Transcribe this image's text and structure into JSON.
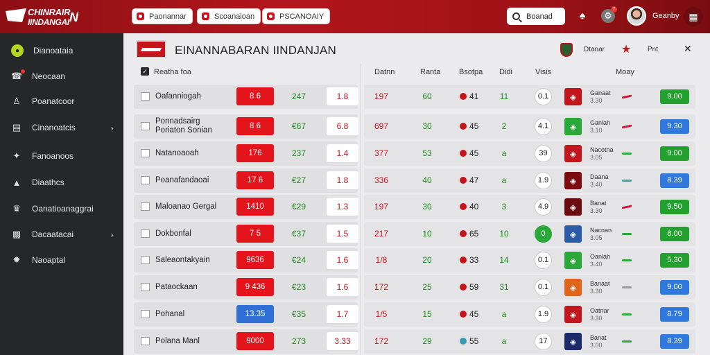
{
  "app": {
    "logo_line1": "CHINRAIR",
    "logo_line2": "IINDANGAI",
    "logo_suffix": "N"
  },
  "topnav": {
    "pills": [
      "Paonannar",
      "Scoanaioan",
      "PSCANOAIY"
    ],
    "search_label": "Boanad",
    "notif_count": "7",
    "user_name": "Geanby"
  },
  "sidebar": {
    "items": [
      {
        "label": "Dianoataia",
        "icon": "ball-icon",
        "active": true
      },
      {
        "label": "Neocaan",
        "icon": "whistle-icon"
      },
      {
        "label": "Poanatcoor",
        "icon": "player-icon"
      },
      {
        "label": "Cinanoatcis",
        "icon": "table-icon",
        "chevron": true
      },
      {
        "label": "Fanoanoos",
        "icon": "kick-icon"
      },
      {
        "label": "Diaathcs",
        "icon": "chart-icon"
      },
      {
        "label": "Oanatioanaggrai",
        "icon": "trophy-icon"
      },
      {
        "label": "Dacaatacai",
        "icon": "grid-icon",
        "chevron": true
      },
      {
        "label": "Naoaptal",
        "icon": "stadium-icon"
      }
    ]
  },
  "panel": {
    "title": "EINANNABARAN IINDANJAN",
    "header_right_1": "Dtanar",
    "header_right_2": "Pnt",
    "col_left": "Reatha foa",
    "columns": [
      "Datnn",
      "Ranta",
      "Bsotpa",
      "Didi",
      "Visis",
      "Moay"
    ]
  },
  "rows": [
    {
      "name": "Oafanniogah",
      "name2": "",
      "score": "8 6",
      "score_color": "red",
      "g": "247",
      "odd": "1.8",
      "c1": "197",
      "c2": "60",
      "c3": "41",
      "c4": "11",
      "circ": "0.1",
      "circ_green": false,
      "logo_color": "#c3161c",
      "t1": "Ganaat",
      "t2": "3.30",
      "arrow": "red",
      "vbtn": "9.00",
      "vbtn_color": "green"
    },
    {
      "name": "Ponnadsairg",
      "name2": "Poriaton Sonian",
      "score": "8 6",
      "score_color": "red",
      "g": "€67",
      "odd": "6.8",
      "c1": "697",
      "c2": "30",
      "c3": "45",
      "c4": "2",
      "circ": "4.1",
      "circ_green": false,
      "logo_color": "#2aa83a",
      "t1": "Ganlah",
      "t2": "3.10",
      "arrow": "red",
      "vbtn": "9.30",
      "vbtn_color": "blue"
    },
    {
      "name": "Natanoaoah",
      "name2": "",
      "score": "176",
      "score_color": "red",
      "g": "237",
      "odd": "1.4",
      "c1": "377",
      "c2": "53",
      "c3": "45",
      "c4": "a",
      "circ": "39",
      "circ_green": false,
      "logo_color": "#c3161c",
      "t1": "Nacotna",
      "t2": "3.05",
      "arrow": "green",
      "vbtn": "9.00",
      "vbtn_color": "green"
    },
    {
      "name": "Poanafandaoai",
      "name2": "",
      "score": "17 6",
      "score_color": "red",
      "g": "€27",
      "odd": "1.8",
      "c1": "336",
      "c2": "40",
      "c3": "47",
      "c4": "a",
      "circ": "1.9",
      "circ_green": false,
      "logo_color": "#7a0c10",
      "t1": "Daana",
      "t2": "3.40",
      "arrow": "teal",
      "vbtn": "8.39",
      "vbtn_color": "blue"
    },
    {
      "name": "Maloanao Gergal",
      "name2": "",
      "score": "1410",
      "score_color": "red",
      "g": "€29",
      "odd": "1.3",
      "c1": "197",
      "c2": "30",
      "c3": "40",
      "c4": "3",
      "circ": "4.9",
      "circ_green": false,
      "logo_color": "#6a0c10",
      "t1": "Banat",
      "t2": "3.30",
      "arrow": "red",
      "vbtn": "9.50",
      "vbtn_color": "green"
    },
    {
      "name": "Dokbonfal",
      "name2": "",
      "score": "7 5",
      "score_color": "red",
      "g": "€37",
      "odd": "1.5",
      "c1": "217",
      "c2": "10",
      "c3": "65",
      "c4": "10",
      "circ": "0",
      "circ_green": true,
      "logo_color": "#2a5aa8",
      "t1": "Nacnan",
      "t2": "3.05",
      "arrow": "green",
      "vbtn": "8.00",
      "vbtn_color": "green"
    },
    {
      "name": "Saleaontakyain",
      "name2": "",
      "score": "9636",
      "score_color": "red",
      "g": "€24",
      "odd": "1.6",
      "c1": "1/8",
      "c2": "20",
      "c3": "33",
      "c4": "14",
      "circ": "0.1",
      "circ_green": false,
      "logo_color": "#2aa83a",
      "t1": "Oanlah",
      "t2": "3.40",
      "arrow": "green",
      "vbtn": "5.30",
      "vbtn_color": "green"
    },
    {
      "name": "Pataockaan",
      "name2": "",
      "score": "9 436",
      "score_color": "red",
      "g": "€23",
      "odd": "1.6",
      "c1": "172",
      "c2": "25",
      "c3": "59",
      "c4": "31",
      "circ": "0.1",
      "circ_green": false,
      "logo_color": "#e0641c",
      "t1": "Banaat",
      "t2": "3.30",
      "arrow": "grey",
      "vbtn": "9.00",
      "vbtn_color": "blue"
    },
    {
      "name": "Pohanal",
      "name2": "",
      "score": "13.35",
      "score_color": "blue",
      "g": "€35",
      "odd": "1.7",
      "c1": "1/5",
      "c2": "15",
      "c3": "45",
      "c4": "a",
      "circ": "1.9",
      "circ_green": false,
      "logo_color": "#c3161c",
      "t1": "Oatnar",
      "t2": "3.30",
      "arrow": "green",
      "vbtn": "8.79",
      "vbtn_color": "blue"
    },
    {
      "name": "Polana Manl",
      "name2": "",
      "score": "9000",
      "score_color": "red",
      "g": "273",
      "odd": "3.33",
      "c1": "172",
      "c2": "29",
      "c3": "55",
      "c4": "a",
      "circ": "17",
      "circ_green": false,
      "logo_color": "#1c2a6a",
      "t1": "Banat",
      "t2": "3.00",
      "arrow": "green",
      "vbtn": "8.39",
      "vbtn_color": "blue"
    }
  ],
  "colors": {
    "brand_red": "#b3161c",
    "accent_green": "#22a12e",
    "accent_blue": "#2f78dd",
    "sidebar_bg": "#262728"
  }
}
